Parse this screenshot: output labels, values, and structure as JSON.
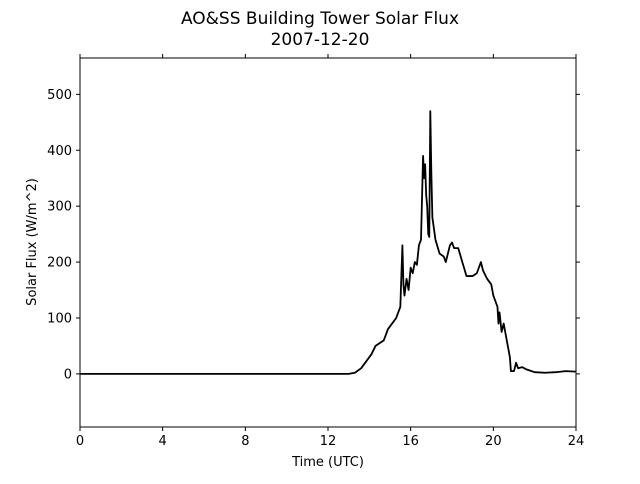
{
  "chart_data": {
    "type": "line",
    "title": "AO&SS Building Tower Solar Flux",
    "subtitle": "2007-12-20",
    "x_label": "Time (UTC)",
    "y_label": "Solar Flux (W/m^2)",
    "x": [
      0,
      13.0,
      13.3,
      13.6,
      13.9,
      14.1,
      14.3,
      14.5,
      14.7,
      14.9,
      15.1,
      15.3,
      15.5,
      15.6,
      15.65,
      15.7,
      15.8,
      15.9,
      16.0,
      16.1,
      16.2,
      16.3,
      16.4,
      16.5,
      16.6,
      16.65,
      16.7,
      16.75,
      16.8,
      16.85,
      16.9,
      16.95,
      17.0,
      17.05,
      17.2,
      17.4,
      17.6,
      17.7,
      17.9,
      18.0,
      18.1,
      18.3,
      18.5,
      18.7,
      19.0,
      19.2,
      19.4,
      19.5,
      19.7,
      19.9,
      20.0,
      20.1,
      20.2,
      20.25,
      20.3,
      20.4,
      20.5,
      20.6,
      20.7,
      20.8,
      20.85,
      21.0,
      21.1,
      21.2,
      21.4,
      21.6,
      22.0,
      22.5,
      23.0,
      23.5,
      24
    ],
    "series": [
      {
        "name": "Solar Flux",
        "color": "#000000",
        "values": [
          0,
          0,
          2,
          10,
          25,
          35,
          50,
          55,
          60,
          80,
          90,
          100,
          120,
          230,
          160,
          140,
          170,
          150,
          190,
          180,
          200,
          195,
          230,
          240,
          390,
          350,
          375,
          320,
          300,
          250,
          245,
          470,
          360,
          280,
          240,
          215,
          210,
          200,
          230,
          235,
          225,
          225,
          200,
          175,
          175,
          180,
          200,
          185,
          170,
          160,
          140,
          130,
          120,
          90,
          110,
          75,
          90,
          70,
          50,
          30,
          5,
          5,
          20,
          10,
          12,
          8,
          3,
          2,
          3,
          5,
          4
        ]
      }
    ],
    "xlim": [
      0,
      24
    ],
    "xticks": [
      0,
      4,
      8,
      12,
      16,
      20,
      24
    ],
    "ylim": [
      -95,
      565
    ],
    "yticks": [
      0,
      100,
      200,
      300,
      400,
      500
    ]
  }
}
